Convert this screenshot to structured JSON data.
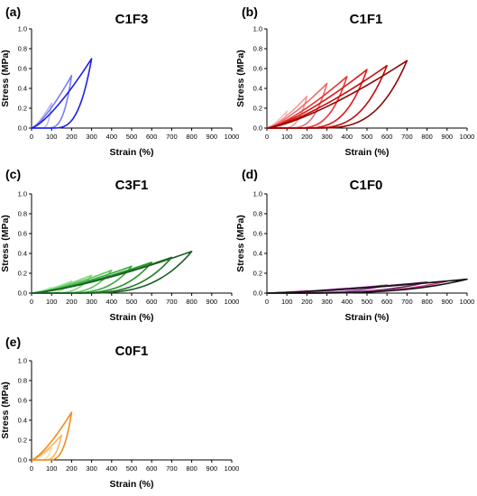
{
  "chart_data": [
    {
      "type": "line",
      "panel_letter": "(a)",
      "title": "C1F3",
      "xlabel": "Strain (%)",
      "ylabel": "Stress (MPa)",
      "xlim": [
        0,
        1000
      ],
      "ylim": [
        0,
        1.0
      ],
      "x_ticks": [
        "0",
        "100",
        "200",
        "300",
        "400",
        "500",
        "600",
        "700",
        "800",
        "900",
        "1000"
      ],
      "y_ticks": [
        "0.0",
        "0.2",
        "0.4",
        "0.6",
        "0.8",
        "1.0"
      ],
      "legend": "none",
      "series": [
        {
          "max_strain": 100,
          "peak_stress": 0.25,
          "residual_strain": 50,
          "color": "#b9b8f4"
        },
        {
          "max_strain": 200,
          "peak_stress": 0.53,
          "residual_strain": 75,
          "color": "#7b7ff0"
        },
        {
          "max_strain": 300,
          "peak_stress": 0.7,
          "residual_strain": 100,
          "color": "#1b1fe6"
        }
      ]
    },
    {
      "type": "line",
      "panel_letter": "(b)",
      "title": "C1F1",
      "xlabel": "Strain (%)",
      "ylabel": "Stress (MPa)",
      "xlim": [
        0,
        1000
      ],
      "ylim": [
        0,
        1.0
      ],
      "x_ticks": [
        "0",
        "100",
        "200",
        "300",
        "400",
        "500",
        "600",
        "700",
        "800",
        "900",
        "1000"
      ],
      "y_ticks": [
        "0.0",
        "0.2",
        "0.4",
        "0.6",
        "0.8",
        "1.0"
      ],
      "legend": "none",
      "series": [
        {
          "max_strain": 100,
          "peak_stress": 0.17,
          "residual_strain": 40,
          "color": "#f6c1c1"
        },
        {
          "max_strain": 200,
          "peak_stress": 0.32,
          "residual_strain": 70,
          "color": "#f39a9a"
        },
        {
          "max_strain": 300,
          "peak_stress": 0.45,
          "residual_strain": 100,
          "color": "#ee6b6b"
        },
        {
          "max_strain": 400,
          "peak_stress": 0.52,
          "residual_strain": 135,
          "color": "#e83434"
        },
        {
          "max_strain": 500,
          "peak_stress": 0.59,
          "residual_strain": 170,
          "color": "#e21414"
        },
        {
          "max_strain": 600,
          "peak_stress": 0.63,
          "residual_strain": 205,
          "color": "#c40a0a"
        },
        {
          "max_strain": 700,
          "peak_stress": 0.68,
          "residual_strain": 240,
          "color": "#8f0606"
        }
      ]
    },
    {
      "type": "line",
      "panel_letter": "(c)",
      "title": "C3F1",
      "xlabel": "Strain (%)",
      "ylabel": "Stress (MPa)",
      "xlim": [
        0,
        1000
      ],
      "ylim": [
        0,
        1.0
      ],
      "x_ticks": [
        "0",
        "100",
        "200",
        "300",
        "400",
        "500",
        "600",
        "700",
        "800",
        "900",
        "1000"
      ],
      "y_ticks": [
        "0.0",
        "0.2",
        "0.4",
        "0.6",
        "0.8",
        "1.0"
      ],
      "legend": "none",
      "series": [
        {
          "max_strain": 100,
          "peak_stress": 0.06,
          "residual_strain": 30,
          "color": "#c8efc8"
        },
        {
          "max_strain": 200,
          "peak_stress": 0.12,
          "residual_strain": 60,
          "color": "#a3e4a3"
        },
        {
          "max_strain": 300,
          "peak_stress": 0.18,
          "residual_strain": 90,
          "color": "#7fd67f"
        },
        {
          "max_strain": 400,
          "peak_stress": 0.23,
          "residual_strain": 120,
          "color": "#5cc65c"
        },
        {
          "max_strain": 500,
          "peak_stress": 0.27,
          "residual_strain": 150,
          "color": "#3aab3a"
        },
        {
          "max_strain": 600,
          "peak_stress": 0.31,
          "residual_strain": 180,
          "color": "#27932a"
        },
        {
          "max_strain": 700,
          "peak_stress": 0.36,
          "residual_strain": 210,
          "color": "#1c7a22"
        },
        {
          "max_strain": 800,
          "peak_stress": 0.42,
          "residual_strain": 240,
          "color": "#1a5e25"
        }
      ]
    },
    {
      "type": "line",
      "panel_letter": "(d)",
      "title": "C1F0",
      "xlabel": "Strain (%)",
      "ylabel": "Stress (MPa)",
      "xlim": [
        0,
        1000
      ],
      "ylim": [
        0,
        1.0
      ],
      "x_ticks": [
        "0",
        "100",
        "200",
        "300",
        "400",
        "500",
        "600",
        "700",
        "800",
        "900",
        "1000"
      ],
      "y_ticks": [
        "0.0",
        "0.2",
        "0.4",
        "0.6",
        "0.8",
        "1.0"
      ],
      "legend": "none",
      "series": [
        {
          "max_strain": 200,
          "peak_stress": 0.03,
          "residual_strain": 20,
          "color": "#f0b8f0"
        },
        {
          "max_strain": 400,
          "peak_stress": 0.05,
          "residual_strain": 40,
          "color": "#d98ad9"
        },
        {
          "max_strain": 600,
          "peak_stress": 0.08,
          "residual_strain": 60,
          "color": "#a248a8"
        },
        {
          "max_strain": 800,
          "peak_stress": 0.11,
          "residual_strain": 80,
          "color": "#5a1e5e"
        },
        {
          "max_strain": 900,
          "peak_stress": 0.12,
          "residual_strain": 90,
          "color": "#c83a80"
        },
        {
          "max_strain": 1000,
          "peak_stress": 0.14,
          "residual_strain": 100,
          "color": "#111111"
        }
      ]
    },
    {
      "type": "line",
      "panel_letter": "(e)",
      "title": "C0F1",
      "xlabel": "Strain (%)",
      "ylabel": "Stress (MPa)",
      "xlim": [
        0,
        1000
      ],
      "ylim": [
        0,
        1.0
      ],
      "x_ticks": [
        "0",
        "100",
        "200",
        "300",
        "400",
        "500",
        "600",
        "700",
        "800",
        "900",
        "1000"
      ],
      "y_ticks": [
        "0.0",
        "0.2",
        "0.4",
        "0.6",
        "0.8",
        "1.0"
      ],
      "legend": "none",
      "series": [
        {
          "max_strain": 100,
          "peak_stress": 0.12,
          "residual_strain": 40,
          "color": "#f9dcb0"
        },
        {
          "max_strain": 150,
          "peak_stress": 0.25,
          "residual_strain": 60,
          "color": "#f6b766"
        },
        {
          "max_strain": 200,
          "peak_stress": 0.48,
          "residual_strain": 80,
          "color": "#f28c1a"
        }
      ]
    }
  ]
}
